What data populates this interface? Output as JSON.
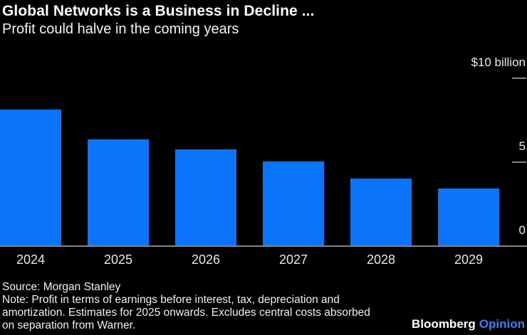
{
  "header": {
    "title": "Global Networks is a Business in Decline ...",
    "subtitle": "Profit could halve in the coming years"
  },
  "chart_data": {
    "type": "bar",
    "categories": [
      "2024",
      "2025",
      "2026",
      "2027",
      "2028",
      "2029"
    ],
    "values": [
      8.1,
      6.3,
      5.7,
      5.0,
      4.0,
      3.4
    ],
    "title": "Global Networks is a Business in Decline ...",
    "subtitle": "Profit could halve in the coming years",
    "xlabel": "",
    "ylabel": "$10 billion",
    "ylim": [
      0,
      10
    ],
    "grid": false,
    "legend_position": "none",
    "axis_side": "right",
    "y_ticks": [
      {
        "value": 10,
        "label": "$10 billion"
      },
      {
        "value": 5,
        "label": "5"
      },
      {
        "value": 0,
        "label": "0"
      }
    ],
    "units": "billion USD"
  },
  "footer": {
    "source": "Source: Morgan Stanley",
    "note_lines": [
      "Note: Profit in terms of earnings before interest, tax, depreciation and",
      "amortization. Estimates for 2025 onwards. Excludes central costs absorbed",
      "on separation from Warner."
    ],
    "brand": {
      "name": "Bloomberg",
      "suffix": "Opinion"
    }
  },
  "colors": {
    "background": "#000000",
    "bar": "#0a74fb",
    "axis": "#848484",
    "opinion_blue": "#3d7ee8"
  }
}
